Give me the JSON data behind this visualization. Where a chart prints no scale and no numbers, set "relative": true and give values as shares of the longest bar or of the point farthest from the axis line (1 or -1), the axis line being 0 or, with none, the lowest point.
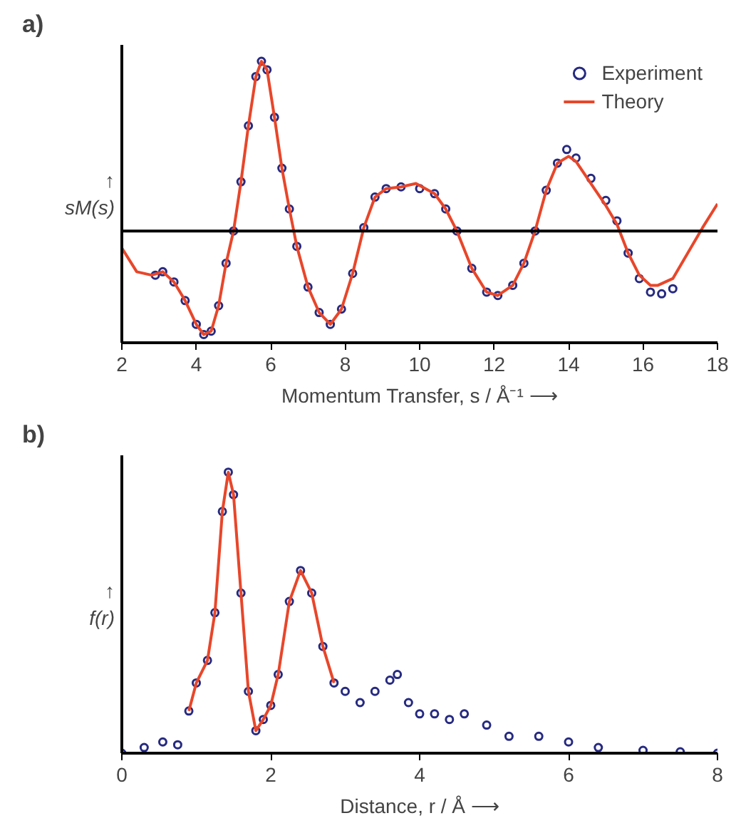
{
  "chart_data": [
    {
      "type": "scatter",
      "title": "a)",
      "xlabel": "Momentum Transfer, s / Å⁻¹ ⟶",
      "ylabel": "↑\nsM(s)",
      "relative": true,
      "xlim": [
        2,
        18
      ],
      "xticks": [
        2,
        4,
        6,
        8,
        10,
        12,
        14,
        16,
        18
      ],
      "grid": false,
      "legend": "top right",
      "marker": "circle",
      "ref_lines": [
        {
          "axis": "y",
          "value": 0,
          "color": "#000000"
        }
      ],
      "series": [
        {
          "name": "Experiment",
          "color": "#262a80",
          "x": [
            2.9,
            3.1,
            3.4,
            3.7,
            4.0,
            4.2,
            4.4,
            4.6,
            4.8,
            5.0,
            5.2,
            5.4,
            5.6,
            5.75,
            5.9,
            6.1,
            6.3,
            6.5,
            6.7,
            7.0,
            7.3,
            7.6,
            7.9,
            8.2,
            8.5,
            8.8,
            9.1,
            9.5,
            10.0,
            10.4,
            10.7,
            11.0,
            11.4,
            11.8,
            12.1,
            12.5,
            12.8,
            13.1,
            13.4,
            13.7,
            13.95,
            14.2,
            14.6,
            15.0,
            15.3,
            15.6,
            15.9,
            16.2,
            16.5,
            16.8
          ],
          "values": [
            -0.26,
            -0.24,
            -0.3,
            -0.41,
            -0.55,
            -0.61,
            -0.59,
            -0.44,
            -0.19,
            0,
            0.29,
            0.62,
            0.91,
            1.0,
            0.95,
            0.67,
            0.37,
            0.13,
            -0.09,
            -0.33,
            -0.48,
            -0.55,
            -0.46,
            -0.25,
            0.02,
            0.2,
            0.25,
            0.26,
            0.25,
            0.22,
            0.13,
            0,
            -0.22,
            -0.36,
            -0.38,
            -0.32,
            -0.19,
            0,
            0.24,
            0.4,
            0.48,
            0.43,
            0.31,
            0.18,
            0.06,
            -0.13,
            -0.28,
            -0.36,
            -0.37,
            -0.34
          ]
        },
        {
          "name": "Theory",
          "type": "line",
          "marker": "none",
          "color": "#e8462a",
          "x": [
            2.0,
            2.4,
            2.8,
            3.1,
            3.4,
            3.7,
            4.0,
            4.2,
            4.4,
            4.6,
            4.8,
            5.0,
            5.2,
            5.4,
            5.6,
            5.75,
            5.9,
            6.1,
            6.3,
            6.5,
            6.7,
            7.0,
            7.3,
            7.6,
            7.9,
            8.2,
            8.5,
            8.8,
            9.1,
            9.5,
            9.9,
            10.4,
            10.7,
            11.0,
            11.4,
            11.8,
            12.1,
            12.5,
            12.8,
            13.1,
            13.4,
            13.7,
            14.0,
            14.2,
            14.6,
            15.0,
            15.3,
            15.6,
            15.9,
            16.2,
            16.4,
            16.8,
            17.2,
            17.6,
            18.0
          ],
          "values": [
            -0.1,
            -0.24,
            -0.26,
            -0.24,
            -0.3,
            -0.41,
            -0.55,
            -0.61,
            -0.59,
            -0.44,
            -0.19,
            0,
            0.29,
            0.62,
            0.91,
            1.0,
            0.95,
            0.67,
            0.37,
            0.13,
            -0.09,
            -0.33,
            -0.48,
            -0.55,
            -0.46,
            -0.25,
            0.02,
            0.2,
            0.25,
            0.26,
            0.28,
            0.22,
            0.13,
            0,
            -0.22,
            -0.36,
            -0.38,
            -0.32,
            -0.19,
            0,
            0.24,
            0.4,
            0.44,
            0.41,
            0.28,
            0.15,
            0.04,
            -0.13,
            -0.26,
            -0.32,
            -0.32,
            -0.28,
            -0.13,
            0.02,
            0.16
          ]
        }
      ]
    },
    {
      "type": "scatter",
      "title": "b)",
      "xlabel": "Distance, r / Å ⟶",
      "ylabel": "↑\nf(r)",
      "relative": true,
      "xlim": [
        0,
        8
      ],
      "xticks": [
        0,
        2,
        4,
        6,
        8
      ],
      "grid": false,
      "marker": "circle",
      "series": [
        {
          "color": "#262a80",
          "x": [
            0,
            0.3,
            0.55,
            0.75,
            0.9,
            1.0,
            1.15,
            1.25,
            1.35,
            1.43,
            1.5,
            1.6,
            1.7,
            1.8,
            1.9,
            2.0,
            2.1,
            2.25,
            2.4,
            2.55,
            2.7,
            2.85,
            3.0,
            3.2,
            3.4,
            3.6,
            3.7,
            3.85,
            4.0,
            4.2,
            4.4,
            4.6,
            4.9,
            5.2,
            5.6,
            6.0,
            6.4,
            7.0,
            7.5,
            8.0
          ],
          "values": [
            0,
            0.02,
            0.04,
            0.03,
            0.15,
            0.25,
            0.33,
            0.5,
            0.86,
            1.0,
            0.92,
            0.57,
            0.22,
            0.08,
            0.12,
            0.17,
            0.28,
            0.54,
            0.65,
            0.57,
            0.38,
            0.25,
            0.22,
            0.18,
            0.22,
            0.26,
            0.28,
            0.18,
            0.14,
            0.14,
            0.12,
            0.14,
            0.1,
            0.06,
            0.06,
            0.04,
            0.02,
            0.01,
            0.005,
            0
          ]
        },
        {
          "type": "line",
          "marker": "none",
          "color": "#e8462a",
          "x": [
            0.9,
            1.0,
            1.15,
            1.25,
            1.35,
            1.43,
            1.5,
            1.6,
            1.7,
            1.8,
            1.9,
            2.0,
            2.1,
            2.25,
            2.4,
            2.55,
            2.7,
            2.85
          ],
          "values": [
            0.15,
            0.25,
            0.33,
            0.5,
            0.86,
            1.0,
            0.92,
            0.57,
            0.22,
            0.08,
            0.12,
            0.17,
            0.28,
            0.54,
            0.65,
            0.57,
            0.38,
            0.25
          ]
        }
      ]
    }
  ]
}
